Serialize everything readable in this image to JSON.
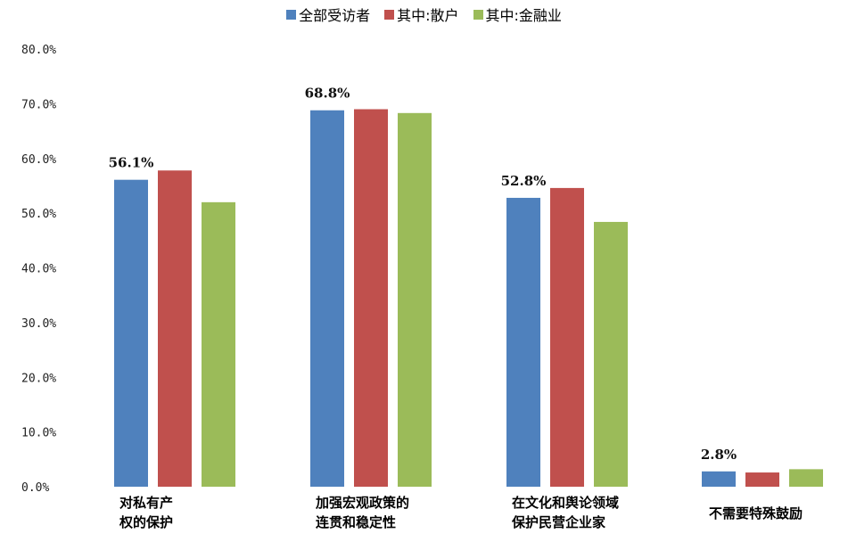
{
  "chart_data": {
    "type": "bar",
    "categories": [
      [
        "对私有产",
        "权的保护"
      ],
      [
        "加强宏观政策的",
        "连贯和稳定性"
      ],
      [
        "在文化和舆论领域",
        "保护民营企业家"
      ],
      [
        "不需要特殊鼓励"
      ]
    ],
    "series": [
      {
        "name": "全部受访者",
        "values": [
          56.1,
          68.8,
          52.8,
          2.8
        ],
        "color": "#4F81BD"
      },
      {
        "name": "其中:散户",
        "values": [
          57.8,
          69.0,
          54.6,
          2.6
        ],
        "color": "#C0504D"
      },
      {
        "name": "其中:金融业",
        "values": [
          52.0,
          68.3,
          48.4,
          3.2
        ],
        "color": "#9BBB59"
      }
    ],
    "data_labels": [
      "56.1%",
      "68.8%",
      "52.8%",
      "2.8%"
    ],
    "y_ticks": [
      "0.0%",
      "10.0%",
      "20.0%",
      "30.0%",
      "40.0%",
      "50.0%",
      "60.0%",
      "70.0%",
      "80.0%"
    ],
    "ylim": [
      0,
      80
    ],
    "grid": false,
    "legend_position": "top"
  }
}
